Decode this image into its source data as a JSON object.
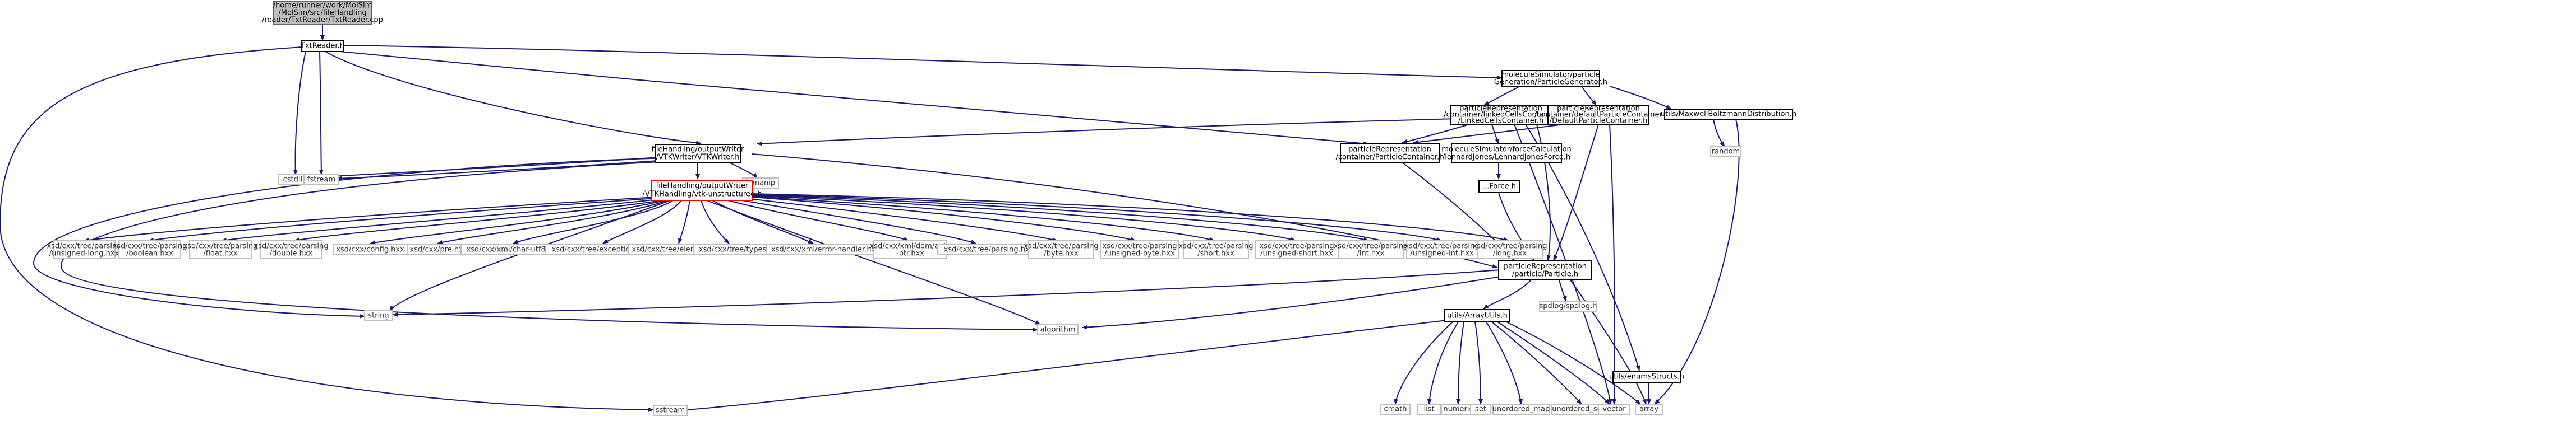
{
  "graph": {
    "root": {
      "line1": "/home/runner/work/MolSim",
      "line2": "/MolSim/src/fileHandling",
      "line3": "/reader/TxtReader/TxtReader.cpp"
    },
    "txtreader_h": "TxtReader.h",
    "particle_generator": {
      "line1": "moleculeSimulator/particle",
      "line2": "Generation/ParticleGenerator.h"
    },
    "linked_cells": {
      "line1": "particleRepresentation",
      "line2": "/container/linkedCellsContainer",
      "line3": "/LinkedCellsContainer.h"
    },
    "default_container": {
      "line1": "particleRepresentation",
      "line2": "/container/defaultParticleContainer",
      "line3": "/DefaultParticleContainer.h"
    },
    "maxwell": "utils/MaxwellBoltzmannDistribution.h",
    "random": "random",
    "vtk_writer": {
      "line1": "fileHandling/outputWriter",
      "line2": "/VTKWriter/VTKWriter.h"
    },
    "particle_container": {
      "line1": "particleRepresentation",
      "line2": "/container/ParticleContainer.h"
    },
    "lennard_jones": {
      "line1": "moleculeSimulator/forceCalculation",
      "line2": "/lennardJones/LennardJonesForce.h"
    },
    "iforce": "...Force.h",
    "cstdlib": "cstdlib",
    "fstream": "fstream",
    "iomanip": "iomanip",
    "vtk_unstructured": {
      "line1": "fileHandling/outputWriter",
      "line2": "/VTKHandling/vtk-unstructured.h"
    },
    "xsd_headers": [
      {
        "line1": "xsd/cxx/tree/parsing",
        "line2": "/unsigned-long.hxx"
      },
      {
        "line1": "xsd/cxx/tree/parsing",
        "line2": "/boolean.hxx"
      },
      {
        "line1": "xsd/cxx/tree/parsing",
        "line2": "/float.hxx"
      },
      {
        "line1": "xsd/cxx/tree/parsing",
        "line2": "/double.hxx"
      },
      {
        "line1": "xsd/cxx/config.hxx"
      },
      {
        "line1": "xsd/cxx/pre.hxx"
      },
      {
        "line1": "xsd/cxx/xml/char-utf8.hxx"
      },
      {
        "line1": "xsd/cxx/tree/exceptions.hxx"
      },
      {
        "line1": "xsd/cxx/tree/elements.hxx"
      },
      {
        "line1": "xsd/cxx/tree/types.hxx"
      },
      {
        "line1": "xsd/cxx/xml/error-handler.hxx"
      },
      {
        "line1": "xsd/cxx/xml/dom/auto",
        "line2": "-ptr.hxx"
      },
      {
        "line1": "xsd/cxx/tree/parsing.hxx"
      },
      {
        "line1": "xsd/cxx/tree/parsing",
        "line2": "/byte.hxx"
      },
      {
        "line1": "xsd/cxx/tree/parsing",
        "line2": "/unsigned-byte.hxx"
      },
      {
        "line1": "xsd/cxx/tree/parsing",
        "line2": "/short.hxx"
      },
      {
        "line1": "xsd/cxx/tree/parsing",
        "line2": "/unsigned-short.hxx"
      },
      {
        "line1": "xsd/cxx/tree/parsing",
        "line2": "/int.hxx"
      },
      {
        "line1": "xsd/cxx/tree/parsing",
        "line2": "/unsigned-int.hxx"
      },
      {
        "line1": "xsd/cxx/tree/parsing",
        "line2": "/long.hxx"
      }
    ],
    "particle_h": {
      "line1": "particleRepresentation",
      "line2": "/particle/Particle.h"
    },
    "enums_structs": "utils/enumsStructs.h",
    "string": "string",
    "algorithm": "algorithm",
    "spdlog": "spdlog/spdlog.h",
    "array_utils": "utils/ArrayUtils.h",
    "sstream": "sstream",
    "cmath": "cmath",
    "list": "list",
    "numeric": "numeric",
    "set": "set",
    "unordered_map": "unordered_map",
    "unordered_set": "unordered_set",
    "vector": "vector",
    "array": "array"
  }
}
